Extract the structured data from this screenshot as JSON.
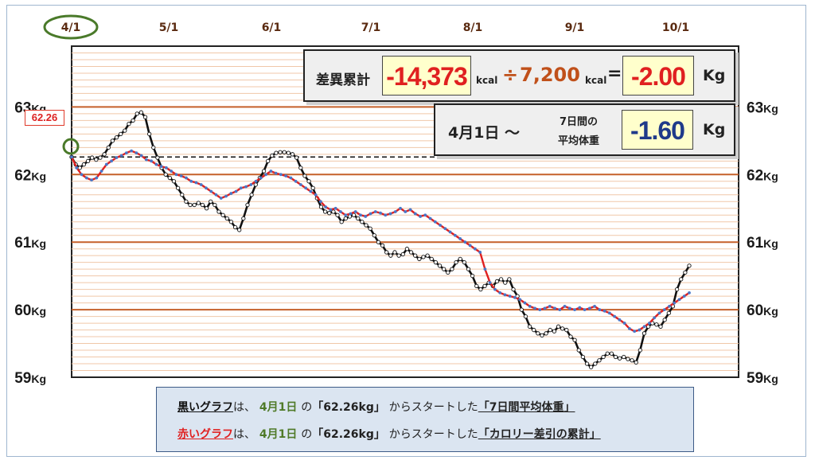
{
  "chart_data": {
    "type": "line",
    "x_labels": [
      "4/1",
      "5/1",
      "6/1",
      "7/1",
      "8/1",
      "9/1",
      "10/1"
    ],
    "highlighted_x_label": "4/1",
    "y_ticks": [
      "63",
      "62",
      "61",
      "60",
      "59"
    ],
    "y_unit": "Kg",
    "ylim": [
      59,
      63.9
    ],
    "grid": true,
    "reference_line": 62.26,
    "start_label": "62.26",
    "series": [
      {
        "color": "#111111",
        "values": [
          62.26,
          62.15,
          62.1,
          62.15,
          62.2,
          62.25,
          62.22,
          62.25,
          62.3,
          62.4,
          62.5,
          62.55,
          62.6,
          62.65,
          62.75,
          62.8,
          62.9,
          62.92,
          62.85,
          62.6,
          62.4,
          62.25,
          62.1,
          62.0,
          61.95,
          61.9,
          61.8,
          61.7,
          61.6,
          61.55,
          61.55,
          61.58,
          61.55,
          61.5,
          61.6,
          61.55,
          61.45,
          61.4,
          61.35,
          61.3,
          61.22,
          61.18,
          61.35,
          61.55,
          61.7,
          61.85,
          61.95,
          62.05,
          62.2,
          62.28,
          62.32,
          62.33,
          62.33,
          62.32,
          62.3,
          62.25,
          62.1,
          61.98,
          61.9,
          61.8,
          61.65,
          61.52,
          61.45,
          61.43,
          61.45,
          61.4,
          61.3,
          61.35,
          61.38,
          61.4,
          61.35,
          61.3,
          61.25,
          61.2,
          61.1,
          61.0,
          60.95,
          60.85,
          60.8,
          60.85,
          60.8,
          60.82,
          60.9,
          60.85,
          60.8,
          60.75,
          60.78,
          60.8,
          60.75,
          60.7,
          60.65,
          60.6,
          60.55,
          60.6,
          60.7,
          60.75,
          60.7,
          60.6,
          60.5,
          60.35,
          60.3,
          60.35,
          60.4,
          60.35,
          60.42,
          60.45,
          60.4,
          60.45,
          60.3,
          60.2,
          60.0,
          59.9,
          59.75,
          59.7,
          59.65,
          59.62,
          59.65,
          59.7,
          59.68,
          59.75,
          59.72,
          59.7,
          59.6,
          59.55,
          59.4,
          59.3,
          59.2,
          59.15,
          59.2,
          59.25,
          59.3,
          59.35,
          59.35,
          59.3,
          59.28,
          59.3,
          59.27,
          59.25,
          59.22,
          59.4,
          59.65,
          59.75,
          59.8,
          59.78,
          59.75,
          59.85,
          59.95,
          60.05,
          60.3,
          60.45,
          60.55,
          60.65
        ],
        "label_color": "#111111"
      },
      {
        "color": "#e02020",
        "marker_color": "#4a78c8",
        "values": [
          62.26,
          62.1,
          62.0,
          61.95,
          61.92,
          61.95,
          62.05,
          62.15,
          62.2,
          62.25,
          62.28,
          62.32,
          62.35,
          62.32,
          62.28,
          62.22,
          62.2,
          62.15,
          62.12,
          62.1,
          62.05,
          62.0,
          61.98,
          61.95,
          61.9,
          61.88,
          61.85,
          61.8,
          61.75,
          61.7,
          61.65,
          61.68,
          61.72,
          61.75,
          61.8,
          61.82,
          61.85,
          61.9,
          61.95,
          62.0,
          62.05,
          62.02,
          62.0,
          61.98,
          61.95,
          61.9,
          61.85,
          61.8,
          61.75,
          61.7,
          61.6,
          61.52,
          61.48,
          61.5,
          61.45,
          61.4,
          61.42,
          61.45,
          61.4,
          61.38,
          61.42,
          61.45,
          61.43,
          61.4,
          61.42,
          61.45,
          61.5,
          61.45,
          61.48,
          61.42,
          61.38,
          61.4,
          61.35,
          61.3,
          61.25,
          61.2,
          61.15,
          61.1,
          61.05,
          61.0,
          60.95,
          60.9,
          60.85,
          60.6,
          60.4,
          60.3,
          60.25,
          60.22,
          60.2,
          60.18,
          60.15,
          60.1,
          60.05,
          60.02,
          60.0,
          60.02,
          60.05,
          60.02,
          60.0,
          60.05,
          60.02,
          60.0,
          60.03,
          60.0,
          60.02,
          60.05,
          60.0,
          59.98,
          59.95,
          59.9,
          59.85,
          59.8,
          59.72,
          59.68,
          59.7,
          59.75,
          59.8,
          59.88,
          59.95,
          60.0,
          60.05,
          60.1,
          60.15,
          60.2,
          60.25
        ]
      }
    ],
    "series_texts": {
      "black_name": "黒いグラフ",
      "red_name": "赤いグラフ",
      "particle_wa": "は、",
      "date": "4月1日",
      "particle_no": "の",
      "start_value": "「62.26kg」",
      "from_text": "からスタートした",
      "black_desc": "「7日間平均体重」",
      "red_desc": "「カロリー差引の累計」"
    }
  },
  "summary_box": {
    "label": "差異累計",
    "value1": "-14,373",
    "unit1": "kcal",
    "operator": "÷",
    "value2": "7,200",
    "unit2": "kcal",
    "equals": "=",
    "result": "-2.00",
    "result_unit": "Kg"
  },
  "avg_box": {
    "date_range": "4月1日 ～",
    "label_line1": "7日間の",
    "label_line2": "平均体重",
    "value": "-1.60",
    "unit": "Kg"
  }
}
